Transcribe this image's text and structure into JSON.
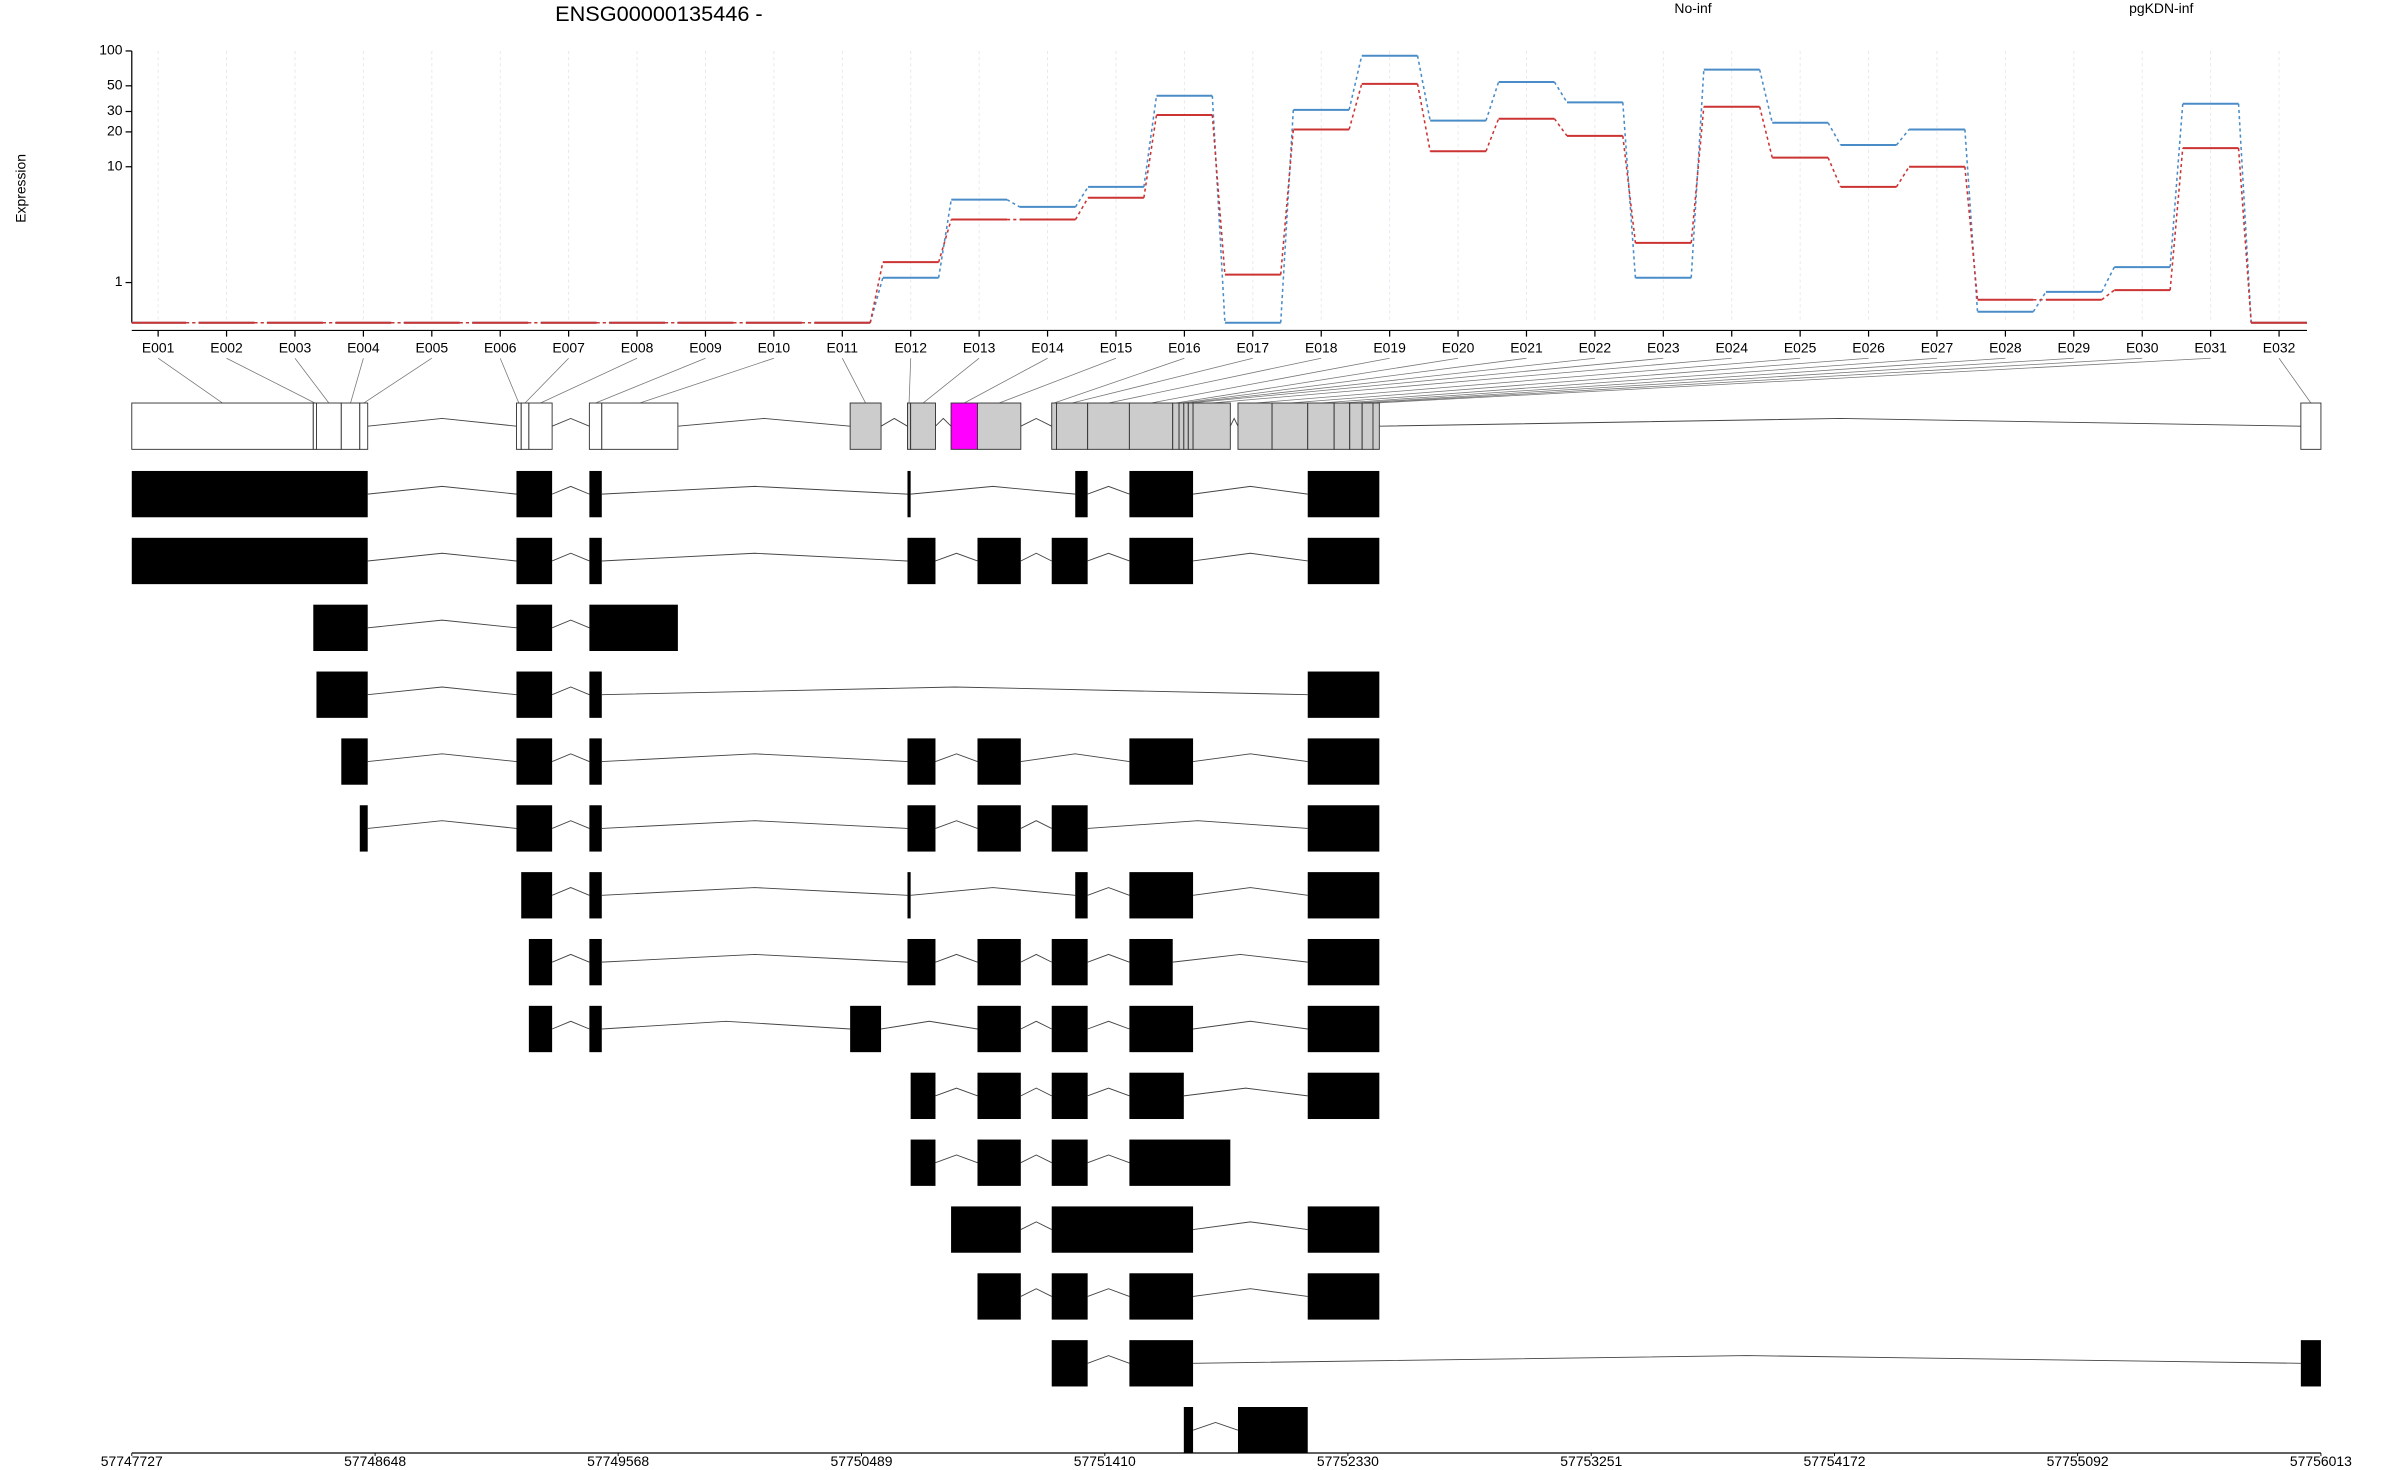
{
  "chart_data": {
    "type": "line",
    "title": "ENSG00000135446 -",
    "ylabel": "Expression",
    "categories": [
      "E001",
      "E002",
      "E003",
      "E004",
      "E005",
      "E006",
      "E007",
      "E008",
      "E009",
      "E010",
      "E011",
      "E012",
      "E013",
      "E014",
      "E015",
      "E016",
      "E017",
      "E018",
      "E019",
      "E020",
      "E021",
      "E022",
      "E023",
      "E024",
      "E025",
      "E026",
      "E027",
      "E028",
      "E029",
      "E030",
      "E031",
      "E032"
    ],
    "series": [
      {
        "name": "No-inf",
        "color": "#cc3333",
        "values": [
          0.45,
          0.45,
          0.45,
          0.45,
          0.45,
          0.45,
          0.45,
          0.45,
          0.45,
          0.45,
          0.45,
          1.5,
          3.5,
          3.5,
          5.4,
          28,
          1.17,
          21,
          52,
          13.6,
          26,
          18.5,
          2.2,
          33,
          12,
          6.7,
          10,
          0.71,
          0.71,
          0.86,
          14.5,
          0.45
        ]
      },
      {
        "name": "pgKDN-inf",
        "color": "#4a8cc8",
        "values": [
          0.45,
          0.45,
          0.45,
          0.45,
          0.45,
          0.45,
          0.45,
          0.45,
          0.45,
          0.45,
          0.45,
          1.1,
          5.2,
          4.5,
          6.7,
          41,
          0.45,
          31,
          91,
          25,
          54,
          36,
          1.1,
          69,
          24,
          15.4,
          21,
          0.56,
          0.83,
          1.36,
          35,
          0.45
        ]
      }
    ],
    "ylim": [
      0.45,
      100
    ],
    "yticks": [
      1,
      10,
      20,
      30,
      50,
      100
    ],
    "log_y": true,
    "grid": true,
    "gene_model": {
      "xlim": [
        57747727,
        57756013
      ],
      "xticks": [
        57747727,
        57748648,
        57749568,
        57750489,
        57751410,
        57752330,
        57753251,
        57754172,
        57755092,
        57756013
      ],
      "bins": [
        [
          57747727,
          57748414
        ],
        [
          57748414,
          57748426
        ],
        [
          57748426,
          57748520
        ],
        [
          57748520,
          57748590
        ],
        [
          57748590,
          57748620
        ],
        [
          57749183,
          57749201
        ],
        [
          57749201,
          57749230
        ],
        [
          57749230,
          57749318
        ],
        [
          57749459,
          57749506
        ],
        [
          57749506,
          57749794
        ],
        [
          57750446,
          57750563
        ],
        [
          57750663,
          57750675
        ],
        [
          57750675,
          57750769
        ],
        [
          57750828,
          57750928
        ],
        [
          57750928,
          57751092
        ],
        [
          57751209,
          57751227
        ],
        [
          57751227,
          57751345
        ],
        [
          57751345,
          57751503
        ],
        [
          57751503,
          57751667
        ],
        [
          57751667,
          57751691
        ],
        [
          57751691,
          57751709
        ],
        [
          57751709,
          57751726
        ],
        [
          57751726,
          57751744
        ],
        [
          57751744,
          57751885
        ],
        [
          57751914,
          57752043
        ],
        [
          57752043,
          57752178
        ],
        [
          57752178,
          57752278
        ],
        [
          57752278,
          57752337
        ],
        [
          57752337,
          57752384
        ],
        [
          57752384,
          57752425
        ],
        [
          57752425,
          57752449
        ],
        [
          57755937,
          57756013
        ]
      ],
      "bin_fill": [
        "#ffffff",
        "#ffffff",
        "#ffffff",
        "#ffffff",
        "#ffffff",
        "#ffffff",
        "#ffffff",
        "#ffffff",
        "#ffffff",
        "#ffffff",
        "#cccccc",
        "#cccccc",
        "#cccccc",
        "#ff00ff",
        "#cccccc",
        "#cccccc",
        "#cccccc",
        "#cccccc",
        "#cccccc",
        "#cccccc",
        "#cccccc",
        "#cccccc",
        "#cccccc",
        "#cccccc",
        "#cccccc",
        "#cccccc",
        "#cccccc",
        "#cccccc",
        "#cccccc",
        "#cccccc",
        "#cccccc",
        "#ffffff"
      ],
      "transcripts": [
        [
          [
            57747727,
            57748620
          ],
          [
            57749183,
            57749318
          ],
          [
            57749459,
            57749506
          ],
          [
            57750663,
            57750675
          ],
          [
            57751298,
            57751345
          ],
          [
            57751503,
            57751744
          ],
          [
            57752178,
            57752449
          ]
        ],
        [
          [
            57747727,
            57748620
          ],
          [
            57749183,
            57749318
          ],
          [
            57749459,
            57749506
          ],
          [
            57750663,
            57750769
          ],
          [
            57750928,
            57751092
          ],
          [
            57751209,
            57751345
          ],
          [
            57751503,
            57751744
          ],
          [
            57752178,
            57752449
          ]
        ],
        [
          [
            57748414,
            57748620
          ],
          [
            57749183,
            57749318
          ],
          [
            57749459,
            57749794
          ]
        ],
        [
          [
            57748426,
            57748620
          ],
          [
            57749183,
            57749318
          ],
          [
            57749459,
            57749506
          ],
          [
            57752178,
            57752449
          ]
        ],
        [
          [
            57748520,
            57748620
          ],
          [
            57749183,
            57749318
          ],
          [
            57749459,
            57749506
          ],
          [
            57750663,
            57750769
          ],
          [
            57750928,
            57751092
          ],
          [
            57751503,
            57751744
          ],
          [
            57752178,
            57752449
          ]
        ],
        [
          [
            57748590,
            57748620
          ],
          [
            57749183,
            57749318
          ],
          [
            57749459,
            57749506
          ],
          [
            57750663,
            57750769
          ],
          [
            57750928,
            57751092
          ],
          [
            57751209,
            57751345
          ],
          [
            57752178,
            57752449
          ]
        ],
        [
          [
            57749201,
            57749318
          ],
          [
            57749459,
            57749506
          ],
          [
            57750663,
            57750675
          ],
          [
            57751298,
            57751345
          ],
          [
            57751503,
            57751744
          ],
          [
            57752178,
            57752449
          ]
        ],
        [
          [
            57749230,
            57749318
          ],
          [
            57749459,
            57749506
          ],
          [
            57750663,
            57750769
          ],
          [
            57750928,
            57751092
          ],
          [
            57751209,
            57751345
          ],
          [
            57751503,
            57751667
          ],
          [
            57752178,
            57752449
          ]
        ],
        [
          [
            57749230,
            57749318
          ],
          [
            57749459,
            57749506
          ],
          [
            57750446,
            57750563
          ],
          [
            57750928,
            57751092
          ],
          [
            57751209,
            57751345
          ],
          [
            57751503,
            57751744
          ],
          [
            57752178,
            57752449
          ]
        ],
        [
          [
            57750675,
            57750769
          ],
          [
            57750928,
            57751092
          ],
          [
            57751209,
            57751345
          ],
          [
            57751503,
            57751709
          ],
          [
            57752178,
            57752449
          ]
        ],
        [
          [
            57750675,
            57750769
          ],
          [
            57750928,
            57751092
          ],
          [
            57751209,
            57751345
          ],
          [
            57751503,
            57751885
          ]
        ],
        [
          [
            57750828,
            57751092
          ],
          [
            57751209,
            57751744
          ],
          [
            57752178,
            57752449
          ]
        ],
        [
          [
            57750928,
            57751092
          ],
          [
            57751209,
            57751345
          ],
          [
            57751503,
            57751744
          ],
          [
            57752178,
            57752449
          ]
        ],
        [
          [
            57751209,
            57751345
          ],
          [
            57751503,
            57751744
          ],
          [
            57755937,
            57756013
          ]
        ],
        [
          [
            57751709,
            57751744
          ],
          [
            57751914,
            57752178
          ]
        ]
      ]
    }
  }
}
